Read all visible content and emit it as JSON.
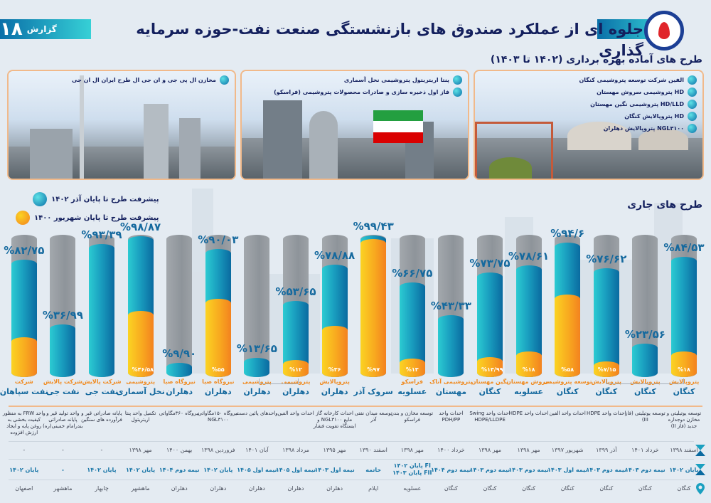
{
  "header": {
    "title": "جلوه ای از عملکرد صندوق های بازنشستگی صنعت نفت-حوزه سرمایه گذاری",
    "report_label": "گزارش",
    "report_number": "۱۸",
    "logo": "flame-logo-icon"
  },
  "ready_section": {
    "title": "طرح های آماده بهره برداری (۱۴۰۲ تا ۱۴۰۳)",
    "panels": [
      {
        "items": [
          "الفین شرکت توسعه پتروشیمی کنگان",
          "HD پتروشیمی سروش مهستان",
          "HD/LLD پتروشیمی نگین مهستان",
          "HD پتروپالایش کنگان",
          "NGL۳۱۰۰ پتروپالایش دهلران"
        ]
      },
      {
        "items": [
          "پنتا اریتریتول پتروشیمی  نخل آسماری",
          "فاز اول ذخیره سازی و صادرات محصولات پتروشیمی (فراسکو)"
        ]
      },
      {
        "items": [
          "مخازن ال پی جی و ان جی ال طرح ایران ال ان جی"
        ]
      }
    ]
  },
  "current_section": {
    "title": "طرح های جاری"
  },
  "legend": {
    "blue": "پیشرفت طرح تا پایان آذر ۱۴۰۲",
    "orange": "پیشرفت طرح تا پایان شهریور ۱۴۰۰"
  },
  "colors": {
    "blue": "#1aa0c0",
    "orange": "#f8a91f",
    "gray": "#9ca1a6",
    "navy": "#14205e",
    "accent_text": "#15699e"
  },
  "chart_data": {
    "type": "bar",
    "title": "طرح های جاری",
    "orientation": "vertical",
    "ylim": [
      0,
      100
    ],
    "legend_position": "top-left",
    "series": [
      {
        "name": "پیشرفت طرح تا پایان آذر ۱۴۰۲",
        "color": "#1aa0c0"
      },
      {
        "name": "پیشرفت طرح تا پایان شهریور ۱۴۰۰",
        "color": "#f8a91f"
      }
    ],
    "bars": [
      {
        "company_sub": "پتروپالایش",
        "company": "کنگان",
        "blue": 84.53,
        "blue_label": "%۸۴/۵۳",
        "orange": 18,
        "orange_label": "%۱۸",
        "description": "توسعه یوتیلیتی و مخازن دوجداره جدید (فاز II)",
        "start": "اسفند ۱۳۹۸",
        "end": "پایان ۱۴۰۲",
        "location": "کنگان"
      },
      {
        "company_sub": "پتروپالایش",
        "company": "کنگان",
        "blue": 23.56,
        "blue_label": "%۲۳/۵۶",
        "orange": null,
        "orange_label": "",
        "description": "توسعه یوتیلیتی (فاز III)",
        "start": "خرداد ۱۴۰۱",
        "end": "نیمه دوم ۱۴۰۳",
        "location": "کنگان"
      },
      {
        "company_sub": "پتروپالایش",
        "company": "کنگان",
        "blue": 76.62,
        "blue_label": "%۷۶/۶۲",
        "orange": 7.15,
        "orange_label": "%۷/۱۵",
        "description": "احداث واحد HDPE",
        "start": "آذر ۱۳۹۹",
        "end": "نیمه دوم ۱۴۰۳",
        "location": "کنگان"
      },
      {
        "company_sub": "توسعه پتروشیمی",
        "company": "کنگان",
        "blue": 94.6,
        "blue_label": "%۹۴/۶",
        "orange": 58,
        "orange_label": "%۵۸",
        "description": "احداث واحد الفین",
        "start": "شهریور ۱۳۹۷",
        "end": "نیمه اول ۱۴۰۳",
        "location": "کنگان"
      },
      {
        "company_sub": "سروش مهستان",
        "company": "عسلویه",
        "blue": 78.61,
        "blue_label": "%۷۸/۶۱",
        "orange": 18,
        "orange_label": "%۱۸",
        "description": "احداث واحد HDPE",
        "start": "مهر ۱۳۹۸",
        "end": "نیمه دوم ۱۴۰۳",
        "location": "کنگان"
      },
      {
        "company_sub": "نگین مهستان",
        "company": "کنگان",
        "blue": 73.75,
        "blue_label": "%۷۳/۷۵",
        "orange": 13.99,
        "orange_label": "%۱۳/۹۹",
        "description": "احداث واحد Swing HDPE/LLDPE",
        "start": "مهر ۱۳۹۸",
        "end": "نیمه دوم ۱۴۰۳",
        "location": "کنگان"
      },
      {
        "company_sub": "پتروشیمی آناک",
        "company": "مهستان",
        "blue": 43.33,
        "blue_label": "%۴۳/۳۳",
        "orange": null,
        "orange_label": "",
        "description": "احداث واحد PDH/PP",
        "start": "خرداد ۱۴۰۰",
        "end": "نیمه دوم ۱۴۰۴",
        "location": "کنگان"
      },
      {
        "company_sub": "فراسکو",
        "company": "عسلویه",
        "blue": 66.75,
        "blue_label": "%۶۶/۷۵",
        "orange": 13,
        "orange_label": "%۱۳",
        "description": "توسعه مخازن و بندر فراسکو",
        "start": "مهر ۱۳۹۸",
        "end": "FI پایان ۱۴۰۲ / FII پایان ۱۴۰۳",
        "location": "عسلویه"
      },
      {
        "company_sub": "",
        "company": "سروک آذر",
        "blue": 99.43,
        "blue_label": "%۹۹/۴۳",
        "orange": 97,
        "orange_label": "%۹۷",
        "description": "توسعه میدان نفتی آذر",
        "start": "اسفند ۱۳۹۰",
        "end": "خاتمه",
        "location": "ایلام"
      },
      {
        "company_sub": "پتروپالایش",
        "company": "دهلران",
        "blue": 78.88,
        "blue_label": "%۷۸/۸۸",
        "orange": 36,
        "orange_label": "%۳۶",
        "description": "احداث کارخانه گاز مایع NGL۳۱۰۰ و ایستگاه تقویت فشار",
        "start": "مهر ۱۳۹۵",
        "end": "نیمه اول ۱۴۰۳",
        "location": "دهلران"
      },
      {
        "company_sub": "پتروشیمی",
        "company": "دهلران",
        "blue": 53.65,
        "blue_label": "%۵۳/۶۵",
        "orange": 12,
        "orange_label": "%۱۲",
        "description": "احداث واحد الفین",
        "start": "مرداد ۱۳۹۸",
        "end": "نیمه اول ۱۴۰۵",
        "location": "دهلران"
      },
      {
        "company_sub": "پتروشیمی",
        "company": "دهلران",
        "blue": 13.65,
        "blue_label": "%۱۳/۶۵",
        "orange": null,
        "orange_label": "",
        "description": "واحدهای پائین دست",
        "start": "آبان ۱۴۰۱",
        "end": "نیمه اول ۱۴۰۵",
        "location": "دهلران"
      },
      {
        "company_sub": "نیروگاه صبا",
        "company": "دهلران",
        "blue": 90.03,
        "blue_label": "%۹۰/۰۳",
        "orange": 55,
        "orange_label": "%۵۵",
        "description": "نیروگاه ۱۵۰مگاواتی NGL۳۱۰۰",
        "start": "فروردین ۱۳۹۸",
        "end": "پایان ۱۴۰۲",
        "location": "دهلران"
      },
      {
        "company_sub": "نیروگاه صبا",
        "company": "دهلران",
        "blue": 9.9,
        "blue_label": "%۹/۹۰",
        "orange": null,
        "orange_label": "",
        "description": "نیروگاه ۳۶۰مگاواتی",
        "start": "بهمن ۱۴۰۰",
        "end": "نیمه دوم ۱۴۰۴",
        "location": "دهلران"
      },
      {
        "company_sub": "پتروشیمی",
        "company": "نخل آسماری",
        "blue": 98.87,
        "blue_label": "%۹۸/۸۷",
        "orange": 46.58,
        "orange_label": "%۴۶/۵۸",
        "description": "تکمیل واحد پنتا اریتریتول",
        "start": "مهر ۱۳۹۸",
        "end": "پایان ۱۴۰۲",
        "location": "ماهشهر"
      },
      {
        "company_sub": "شرکت پالایش",
        "company": "نفت جی",
        "blue": 93.39,
        "blue_label": "%۹۳/۳۹",
        "orange": null,
        "orange_label": "",
        "description": "پایانه صادراتی قیر و فرآورده های سنگین",
        "start": "-",
        "end": "پایان ۱۴۰۲",
        "location": "چابهار"
      },
      {
        "company_sub": "شرکت پالایش",
        "company": "نفت جی",
        "blue": 36.99,
        "blue_label": "%۳۶/۹۹",
        "orange": null,
        "orange_label": "",
        "description": "واحد تولید قیر و پایانه صادراتی بندرامام خمینی(ره)",
        "start": "-",
        "end": "-",
        "location": "ماهشهر"
      },
      {
        "company_sub": "شرکت",
        "company": "نفت سپاهان",
        "blue": 82.75,
        "blue_label": "%۸۲/۷۵",
        "orange": 28,
        "orange_label": "",
        "description": "واحد FRW به منظور کیفیت بخشی به روغن پایه و ایجاد ارزش افزوده",
        "start": "-",
        "end": "پایان ۱۴۰۲",
        "location": "اصفهان"
      }
    ]
  },
  "table": {
    "start_icon": "hourglass-start-icon",
    "end_icon": "hourglass-end-icon",
    "location_icon": "map-pin-icon"
  }
}
